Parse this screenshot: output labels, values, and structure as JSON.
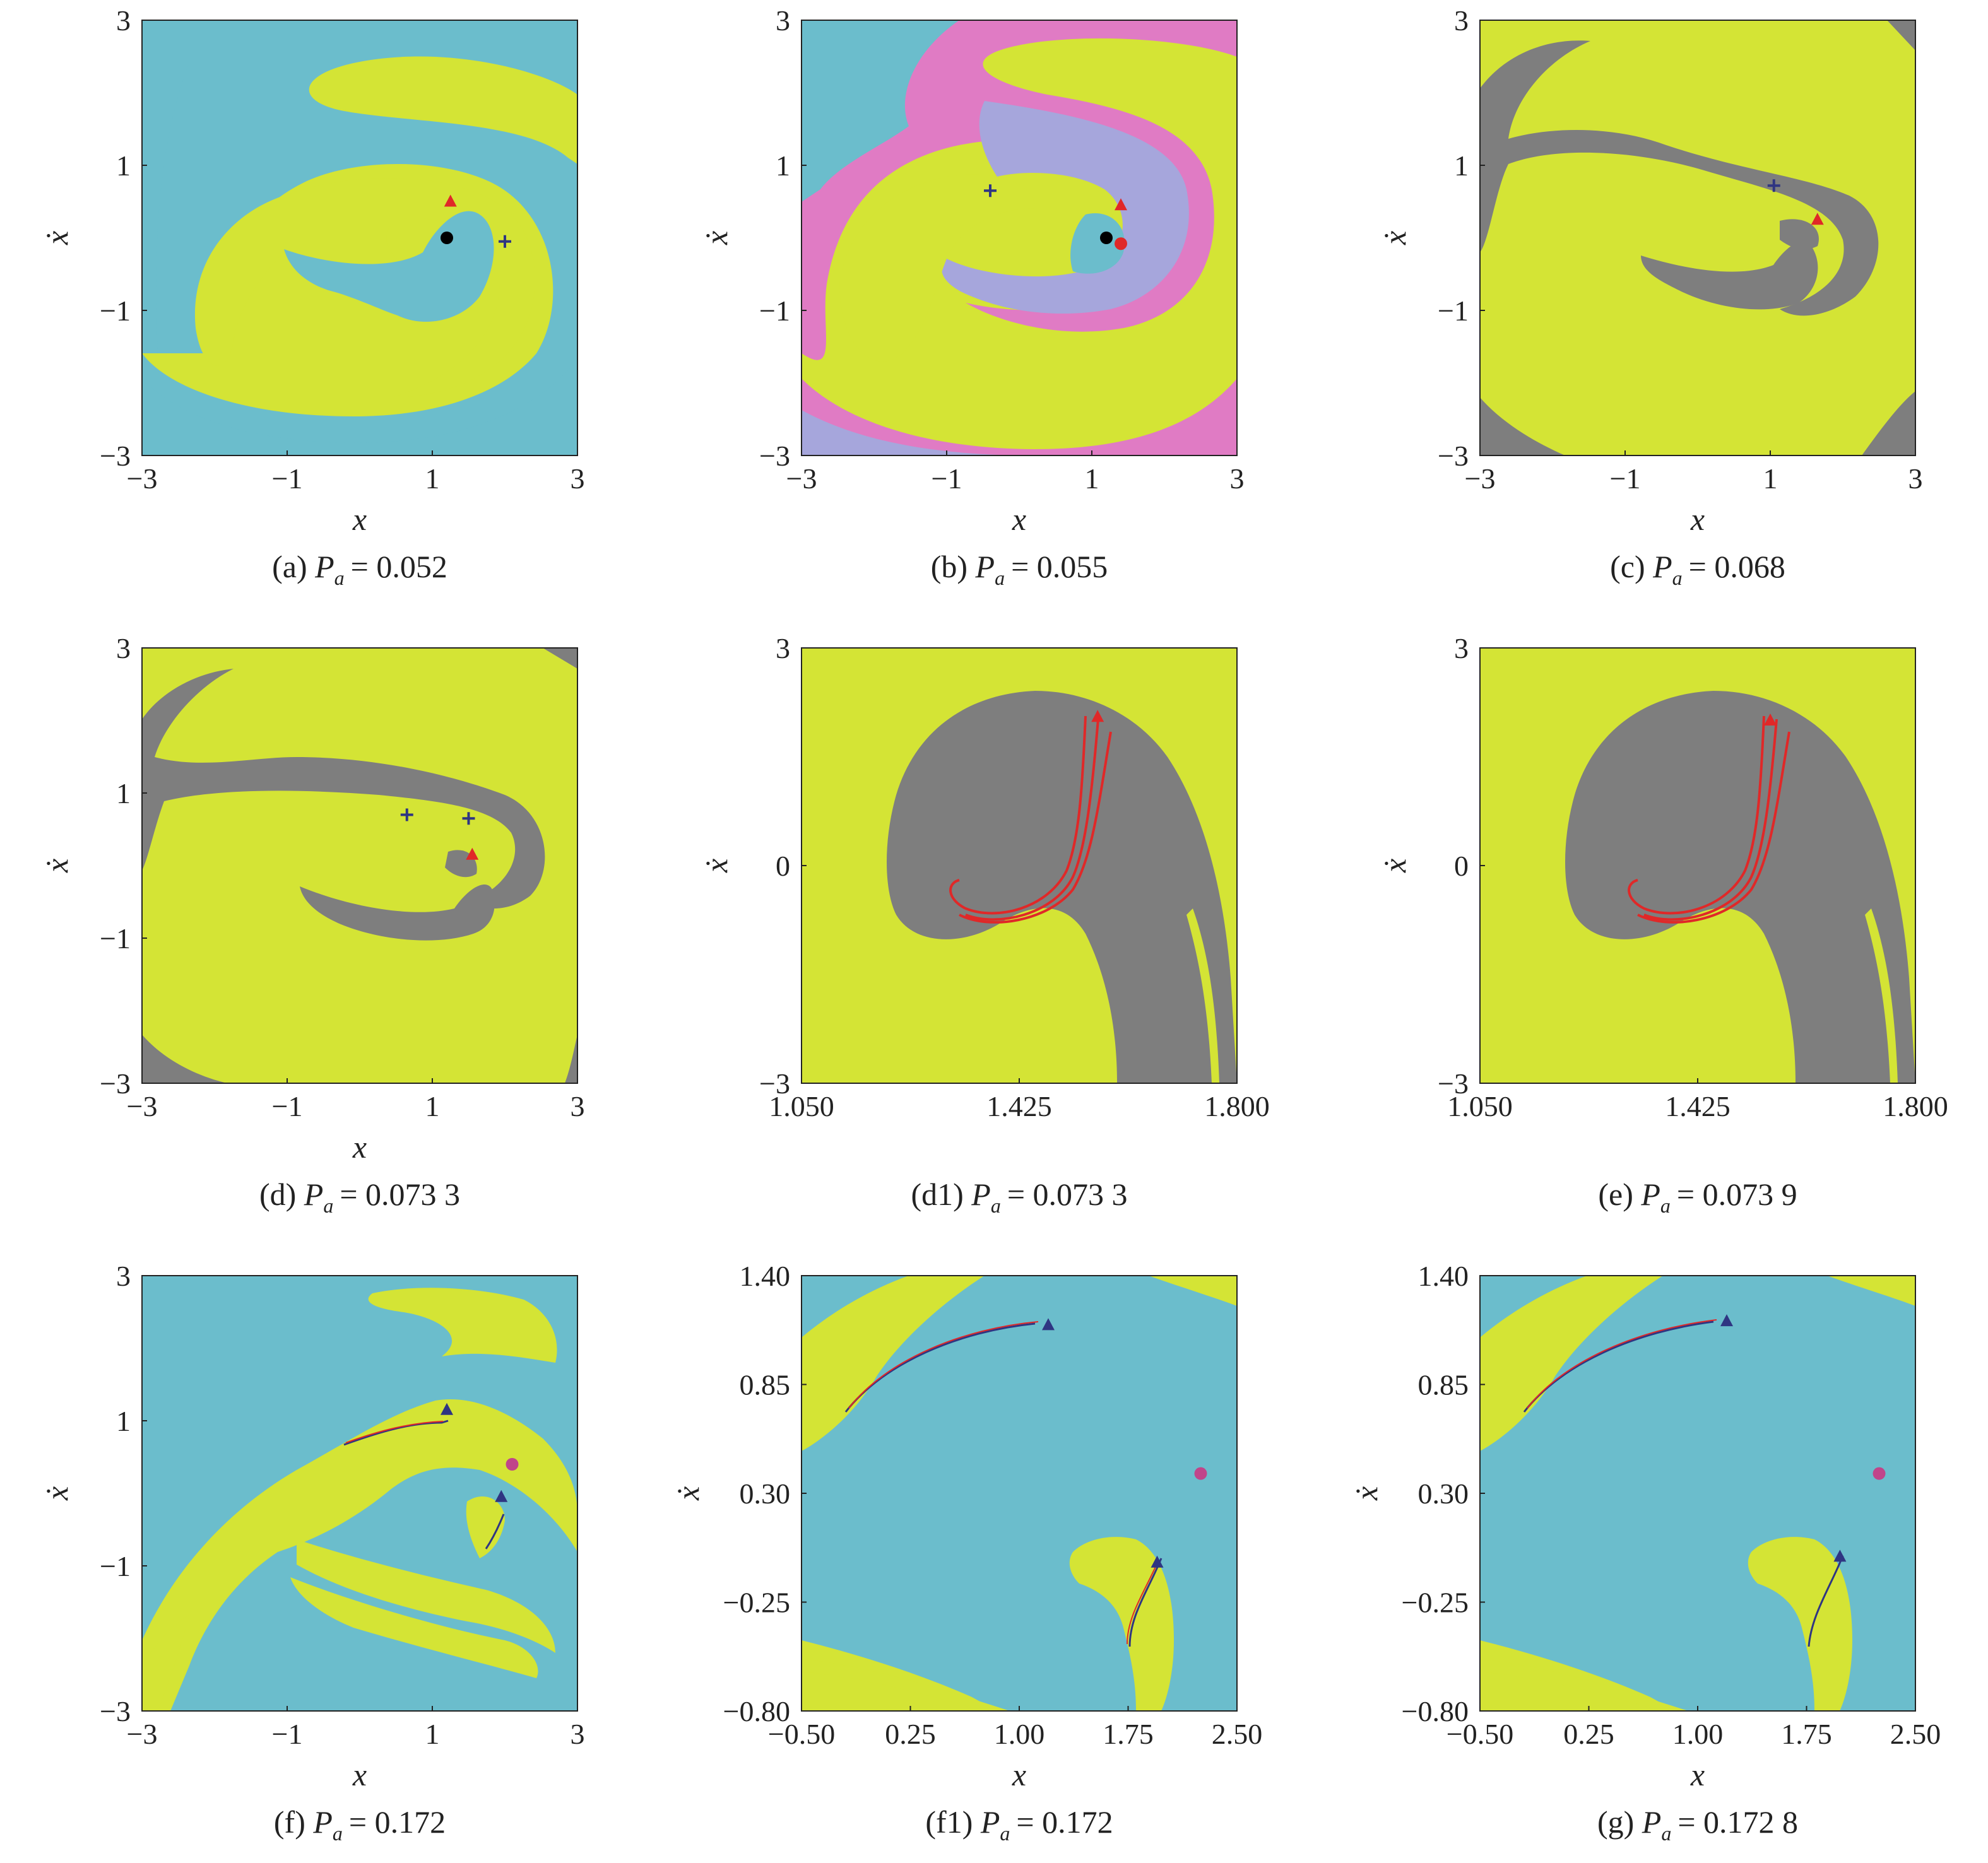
{
  "colors": {
    "yellow": "#d4e435",
    "blue": "#6bbdcc",
    "pink": "#e07bc4",
    "lavender": "#a6a6dc",
    "gray": "#7e7e7e",
    "red": "#e02828",
    "navy": "#2f3582",
    "black": "#000000",
    "magenta": "#c0458a"
  },
  "chart_data": [
    {
      "id": "a",
      "type": "heatmap",
      "caption_prefix": "(a) ",
      "param_symbol": "P",
      "param_sub": "a",
      "param_value": "= 0.052",
      "xlabel": "x",
      "ylabel": "ẋ",
      "xlim": [
        -3,
        3
      ],
      "ylim": [
        -3,
        3
      ],
      "xticks": [
        "−3",
        "−1",
        "1",
        "3"
      ],
      "yticks": [
        "−3",
        "−1",
        "1",
        "3"
      ],
      "xtick_values": [
        -3,
        -1,
        1,
        3
      ],
      "ytick_values": [
        -3,
        -1,
        1,
        3
      ],
      "basins": [
        "yellow",
        "blue"
      ],
      "markers": [
        {
          "shape": "circle",
          "color": "black",
          "x": 1.2,
          "y": 0.0
        },
        {
          "shape": "plus",
          "color": "navy",
          "x": 2.0,
          "y": -0.05
        },
        {
          "shape": "triangle",
          "color": "red",
          "x": 1.25,
          "y": 0.5
        }
      ]
    },
    {
      "id": "b",
      "type": "heatmap",
      "caption_prefix": "(b) ",
      "param_symbol": "P",
      "param_sub": "a",
      "param_value": "= 0.055",
      "xlabel": "x",
      "ylabel": "ẋ",
      "xlim": [
        -3,
        3
      ],
      "ylim": [
        -3,
        3
      ],
      "xticks": [
        "−3",
        "−1",
        "1",
        "3"
      ],
      "yticks": [
        "−3",
        "−1",
        "1",
        "3"
      ],
      "xtick_values": [
        -3,
        -1,
        1,
        3
      ],
      "ytick_values": [
        -3,
        -1,
        1,
        3
      ],
      "basins": [
        "yellow",
        "blue",
        "pink",
        "lavender"
      ],
      "markers": [
        {
          "shape": "circle",
          "color": "black",
          "x": 1.2,
          "y": 0.0
        },
        {
          "shape": "circle",
          "color": "red",
          "x": 1.4,
          "y": -0.08
        },
        {
          "shape": "plus",
          "color": "navy",
          "x": -0.4,
          "y": 0.65
        },
        {
          "shape": "triangle",
          "color": "red",
          "x": 1.4,
          "y": 0.45
        }
      ]
    },
    {
      "id": "c",
      "type": "heatmap",
      "caption_prefix": "(c) ",
      "param_symbol": "P",
      "param_sub": "a",
      "param_value": "= 0.068",
      "xlabel": "x",
      "ylabel": "ẋ",
      "xlim": [
        -3,
        3
      ],
      "ylim": [
        -3,
        3
      ],
      "xticks": [
        "−3",
        "−1",
        "1",
        "3"
      ],
      "yticks": [
        "−3",
        "−1",
        "1",
        "3"
      ],
      "xtick_values": [
        -3,
        -1,
        1,
        3
      ],
      "ytick_values": [
        -3,
        -1,
        1,
        3
      ],
      "basins": [
        "yellow",
        "gray"
      ],
      "markers": [
        {
          "shape": "plus",
          "color": "navy",
          "x": 1.05,
          "y": 0.72
        },
        {
          "shape": "triangle",
          "color": "red",
          "x": 1.65,
          "y": 0.25
        }
      ]
    },
    {
      "id": "d",
      "type": "heatmap",
      "caption_prefix": "(d) ",
      "param_symbol": "P",
      "param_sub": "a",
      "param_value": "= 0.073 3",
      "xlabel": "x",
      "ylabel": "ẋ",
      "xlim": [
        -3,
        3
      ],
      "ylim": [
        -3,
        3
      ],
      "xticks": [
        "−3",
        "−1",
        "1",
        "3"
      ],
      "yticks": [
        "−3",
        "−1",
        "1",
        "3"
      ],
      "xtick_values": [
        -3,
        -1,
        1,
        3
      ],
      "ytick_values": [
        -3,
        -1,
        1,
        3
      ],
      "basins": [
        "yellow",
        "gray"
      ],
      "markers": [
        {
          "shape": "plus",
          "color": "navy",
          "x": 0.65,
          "y": 0.7
        },
        {
          "shape": "plus",
          "color": "navy",
          "x": 1.5,
          "y": 0.65
        },
        {
          "shape": "triangle",
          "color": "red",
          "x": 1.55,
          "y": 0.15
        }
      ]
    },
    {
      "id": "d1",
      "type": "heatmap",
      "caption_prefix": "(d1) ",
      "param_symbol": "P",
      "param_sub": "a",
      "param_value": "= 0.073 3",
      "xlabel": "",
      "ylabel": "ẋ",
      "xlim": [
        1.05,
        1.8
      ],
      "ylim": [
        -3,
        3
      ],
      "xticks": [
        "1.050",
        "1.425",
        "1.800"
      ],
      "yticks": [
        "−3",
        "0",
        "3"
      ],
      "xtick_values": [
        1.05,
        1.425,
        1.8
      ],
      "ytick_values": [
        -3,
        0,
        3
      ],
      "basins": [
        "yellow",
        "gray"
      ],
      "markers": [
        {
          "shape": "triangle",
          "color": "red",
          "x": 1.56,
          "y": 2.05
        }
      ]
    },
    {
      "id": "e",
      "type": "heatmap",
      "caption_prefix": "(e) ",
      "param_symbol": "P",
      "param_sub": "a",
      "param_value": "= 0.073 9",
      "xlabel": "",
      "ylabel": "ẋ",
      "xlim": [
        1.05,
        1.8
      ],
      "ylim": [
        -3,
        3
      ],
      "xticks": [
        "1.050",
        "1.425",
        "1.800"
      ],
      "yticks": [
        "−3",
        "0",
        "3"
      ],
      "xtick_values": [
        1.05,
        1.425,
        1.8
      ],
      "ytick_values": [
        -3,
        0,
        3
      ],
      "basins": [
        "yellow",
        "gray"
      ],
      "markers": [
        {
          "shape": "triangle",
          "color": "red",
          "x": 1.55,
          "y": 2.0
        }
      ]
    },
    {
      "id": "f",
      "type": "heatmap",
      "caption_prefix": "(f) ",
      "param_symbol": "P",
      "param_sub": "a",
      "param_value": "= 0.172",
      "xlabel": "x",
      "ylabel": "ẋ",
      "xlim": [
        -3,
        3
      ],
      "ylim": [
        -3,
        3
      ],
      "xticks": [
        "−3",
        "−1",
        "1",
        "3"
      ],
      "yticks": [
        "−3",
        "−1",
        "1",
        "3"
      ],
      "xtick_values": [
        -3,
        -1,
        1,
        3
      ],
      "ytick_values": [
        -3,
        -1,
        1,
        3
      ],
      "basins": [
        "blue",
        "yellow"
      ],
      "markers": [
        {
          "shape": "triangle",
          "color": "navy",
          "x": 1.2,
          "y": 1.15
        },
        {
          "shape": "triangle",
          "color": "navy",
          "x": 1.95,
          "y": -0.05
        },
        {
          "shape": "circle",
          "color": "magenta",
          "x": 2.1,
          "y": 0.4
        }
      ]
    },
    {
      "id": "f1",
      "type": "heatmap",
      "caption_prefix": "(f1) ",
      "param_symbol": "P",
      "param_sub": "a",
      "param_value": "= 0.172",
      "xlabel": "x",
      "ylabel": "ẋ",
      "xlim": [
        -0.5,
        2.5
      ],
      "ylim": [
        -0.8,
        1.4
      ],
      "xticks": [
        "−0.50",
        "0.25",
        "1.00",
        "1.75",
        "2.50"
      ],
      "yticks": [
        "−0.80",
        "−0.25",
        "0.30",
        "0.85",
        "1.40"
      ],
      "xtick_values": [
        -0.5,
        0.25,
        1.0,
        1.75,
        2.5
      ],
      "ytick_values": [
        -0.8,
        -0.25,
        0.3,
        0.85,
        1.4
      ],
      "basins": [
        "blue",
        "yellow"
      ],
      "markers": [
        {
          "shape": "triangle",
          "color": "navy",
          "x": 1.2,
          "y": 1.15
        },
        {
          "shape": "triangle",
          "color": "navy",
          "x": 1.95,
          "y": -0.05
        },
        {
          "shape": "circle",
          "color": "magenta",
          "x": 2.25,
          "y": 0.4
        }
      ]
    },
    {
      "id": "g",
      "type": "heatmap",
      "caption_prefix": "(g) ",
      "param_symbol": "P",
      "param_sub": "a",
      "param_value": "= 0.172 8",
      "xlabel": "x",
      "ylabel": "ẋ",
      "xlim": [
        -0.5,
        2.5
      ],
      "ylim": [
        -0.8,
        1.4
      ],
      "xticks": [
        "−0.50",
        "0.25",
        "1.00",
        "1.75",
        "2.50"
      ],
      "yticks": [
        "−0.80",
        "−0.25",
        "0.30",
        "0.85",
        "1.40"
      ],
      "xtick_values": [
        -0.5,
        0.25,
        1.0,
        1.75,
        2.5
      ],
      "ytick_values": [
        -0.8,
        -0.25,
        0.3,
        0.85,
        1.4
      ],
      "basins": [
        "blue",
        "yellow"
      ],
      "markers": [
        {
          "shape": "triangle",
          "color": "navy",
          "x": 1.2,
          "y": 1.17
        },
        {
          "shape": "triangle",
          "color": "navy",
          "x": 1.98,
          "y": -0.02
        },
        {
          "shape": "circle",
          "color": "magenta",
          "x": 2.25,
          "y": 0.4
        }
      ]
    }
  ]
}
